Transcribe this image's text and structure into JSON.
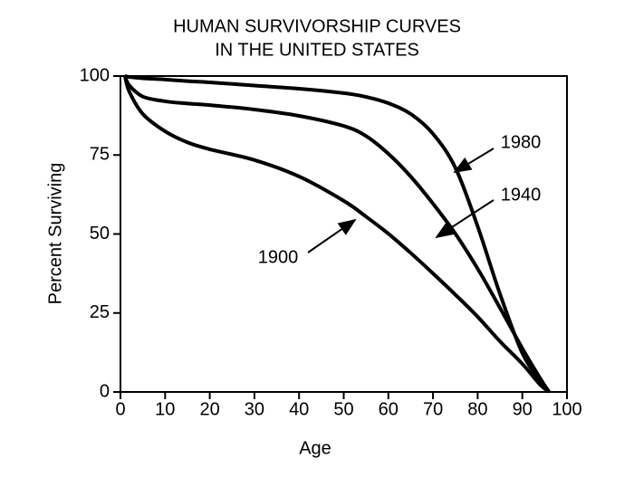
{
  "chart_data": {
    "type": "line",
    "title": [
      "HUMAN SURVIVORSHIP CURVES",
      "IN THE UNITED STATES"
    ],
    "x_label": "Age",
    "y_label": "Percent Surviving",
    "x": [
      1,
      2,
      5,
      10,
      15,
      20,
      30,
      40,
      50,
      55,
      60,
      65,
      70,
      75,
      80,
      85,
      90,
      94,
      96
    ],
    "series": [
      {
        "name": "1980",
        "color": "#000000",
        "values": [
          100,
          99.7,
          99.3,
          98.9,
          98.4,
          98,
          97,
          96,
          94.6,
          93.4,
          91.4,
          88,
          81.7,
          71,
          52.4,
          31,
          12.3,
          3.7,
          0
        ]
      },
      {
        "name": "1940",
        "color": "#000000",
        "values": [
          100,
          97,
          93.5,
          92,
          91.3,
          90.8,
          89.4,
          87.4,
          84.2,
          81,
          75.4,
          68.2,
          59.6,
          50.1,
          39,
          26.6,
          13.8,
          4.3,
          0
        ]
      },
      {
        "name": "1900",
        "color": "#000000",
        "values": [
          100,
          95,
          88,
          82.5,
          79,
          76.8,
          73.4,
          68.2,
          60.5,
          55.5,
          50.1,
          44,
          37.5,
          30.8,
          23.8,
          16,
          8.9,
          2.3,
          0
        ]
      }
    ],
    "xlim": [
      0,
      100
    ],
    "xticks": [
      0,
      10,
      20,
      30,
      40,
      50,
      60,
      70,
      80,
      90,
      100
    ],
    "ylim": [
      0,
      100
    ],
    "yticks": [
      0,
      25,
      50,
      75,
      100
    ]
  }
}
